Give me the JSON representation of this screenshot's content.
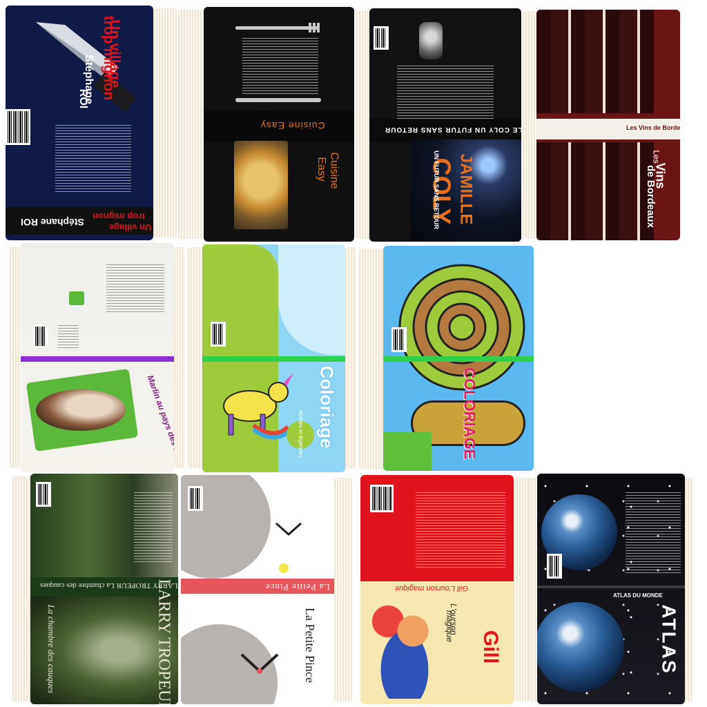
{
  "books": {
    "village": {
      "title_line1": "Un village",
      "title_line2": "trop mignon",
      "author_first": "Stéphane",
      "author_last": "ROI",
      "spine_title_1": "Un village",
      "spine_title_2": "trop mignon",
      "spine_author": "Stéphane ROI"
    },
    "cuisine": {
      "title_1": "Cuisine",
      "title_2": "Easy",
      "spine": "Cuisine Easy"
    },
    "coly": {
      "author_1": "JAMILLE",
      "author_2": "COLY",
      "subtitle": "UN FUTUR SANS RETOUR",
      "spine": "JAMILLE   COLY   UN FUTUR SANS RETOUR"
    },
    "vins": {
      "title_1": "Les",
      "title_2": "Vins",
      "title_3": "de Bordeaux",
      "spine": "Les Vins de Bordeaux"
    },
    "marlin": {
      "title": "Marlin au pays des lutins"
    },
    "coloriage_unicorn": {
      "title": "Coloriage",
      "subtitle": "Mythes et légendes"
    },
    "coloriage_snail": {
      "title": "COLORIAGE"
    },
    "larry": {
      "author": "LARRY TROPEUR",
      "title": "La chambre des cauques",
      "spine": "LARRY TROPEUR   La chambre des cauques"
    },
    "prince": {
      "title": "La Petite Pince",
      "spine": "La Petite Pince"
    },
    "gill": {
      "author": "Gill",
      "title_1": "L'ourson",
      "title_2": "magique",
      "spine": "Gill   L'ourson magique"
    },
    "atlas": {
      "title": "ATLAS",
      "spine": "ATLAS DU MONDE"
    }
  },
  "colors": {
    "navy": "#0f1d4a",
    "red": "#e0121b",
    "orange": "#e8701c",
    "wine": "#6b1414",
    "green_band": "#2fd14a",
    "purple_band": "#8b2fd1",
    "sky": "#8fd6f5"
  }
}
